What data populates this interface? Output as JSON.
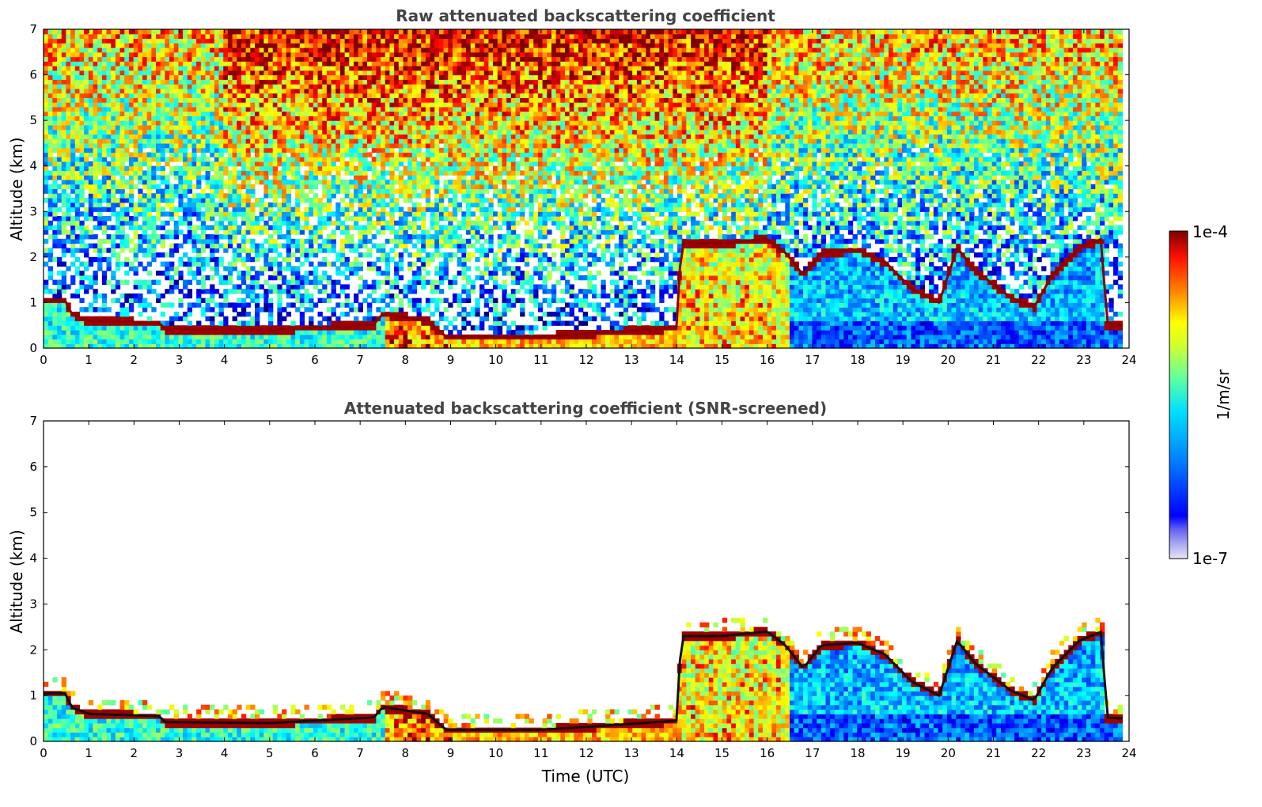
{
  "chart_data": [
    {
      "type": "heatmap",
      "title": "Raw attenuated backscattering coefficient",
      "xlabel": "",
      "ylabel": "Altitude (km)",
      "xlim": [
        0,
        24
      ],
      "ylim": [
        0,
        7
      ],
      "x_ticks": [
        "0",
        "1",
        "2",
        "3",
        "4",
        "5",
        "6",
        "7",
        "8",
        "9",
        "10",
        "11",
        "12",
        "13",
        "14",
        "15",
        "16",
        "17",
        "18",
        "19",
        "20",
        "21",
        "22",
        "23",
        "24"
      ],
      "y_ticks": [
        "0",
        "1",
        "2",
        "3",
        "4",
        "5",
        "6",
        "7"
      ],
      "colormap": "jet",
      "color_scale": "log",
      "features": {
        "boundary_layer_top_km": [
          [
            0,
            1.05
          ],
          [
            0.5,
            1.05
          ],
          [
            0.6,
            0.75
          ],
          [
            1.0,
            0.6
          ],
          [
            2.6,
            0.55
          ],
          [
            2.65,
            0.42
          ],
          [
            5,
            0.4
          ],
          [
            7.3,
            0.52
          ],
          [
            7.5,
            0.75
          ],
          [
            8.5,
            0.6
          ],
          [
            8.9,
            0.25
          ],
          [
            11,
            0.25
          ],
          [
            14,
            0.45
          ],
          [
            14.1,
            2.3
          ],
          [
            15,
            2.3
          ],
          [
            16,
            2.4
          ],
          [
            16.4,
            2.1
          ],
          [
            16.8,
            1.6
          ],
          [
            17.2,
            2.1
          ],
          [
            18,
            2.15
          ],
          [
            18.6,
            1.9
          ],
          [
            19.2,
            1.3
          ],
          [
            19.8,
            1.0
          ],
          [
            20.2,
            2.2
          ],
          [
            20.6,
            1.7
          ],
          [
            21.0,
            1.4
          ],
          [
            21.4,
            1.1
          ],
          [
            21.9,
            0.9
          ],
          [
            22.3,
            1.6
          ],
          [
            22.9,
            2.2
          ],
          [
            23.4,
            2.4
          ],
          [
            23.5,
            0.52
          ],
          [
            23.85,
            0.5
          ]
        ],
        "noisy_upper_region": true
      }
    },
    {
      "type": "heatmap",
      "title": "Attenuated backscattering coefficient (SNR-screened)",
      "xlabel": "Time (UTC)",
      "ylabel": "Altitude (km)",
      "xlim": [
        0,
        24
      ],
      "ylim": [
        0,
        7
      ],
      "x_ticks": [
        "0",
        "1",
        "2",
        "3",
        "4",
        "5",
        "6",
        "7",
        "8",
        "9",
        "10",
        "11",
        "12",
        "13",
        "14",
        "15",
        "16",
        "17",
        "18",
        "19",
        "20",
        "21",
        "22",
        "23",
        "24"
      ],
      "y_ticks": [
        "0",
        "1",
        "2",
        "3",
        "4",
        "5",
        "6",
        "7"
      ],
      "colormap": "jet",
      "color_scale": "log",
      "features": {
        "boundary_layer_top_km": [
          [
            0,
            1.05
          ],
          [
            0.5,
            1.05
          ],
          [
            0.6,
            0.75
          ],
          [
            1.0,
            0.6
          ],
          [
            2.6,
            0.55
          ],
          [
            2.65,
            0.42
          ],
          [
            5,
            0.4
          ],
          [
            7.3,
            0.52
          ],
          [
            7.5,
            0.75
          ],
          [
            8.5,
            0.6
          ],
          [
            8.9,
            0.25
          ],
          [
            11,
            0.25
          ],
          [
            14,
            0.45
          ],
          [
            14.1,
            2.3
          ],
          [
            15,
            2.3
          ],
          [
            16,
            2.4
          ],
          [
            16.4,
            2.1
          ],
          [
            16.8,
            1.6
          ],
          [
            17.2,
            2.1
          ],
          [
            18,
            2.15
          ],
          [
            18.6,
            1.9
          ],
          [
            19.2,
            1.3
          ],
          [
            19.8,
            1.0
          ],
          [
            20.2,
            2.2
          ],
          [
            20.6,
            1.7
          ],
          [
            21.0,
            1.4
          ],
          [
            21.4,
            1.1
          ],
          [
            21.9,
            0.9
          ],
          [
            22.3,
            1.6
          ],
          [
            22.9,
            2.2
          ],
          [
            23.4,
            2.4
          ],
          [
            23.5,
            0.52
          ],
          [
            23.85,
            0.5
          ]
        ],
        "noisy_upper_region": false
      }
    }
  ],
  "colorbar": {
    "label": "1/m/sr",
    "max_label": "1e-4",
    "min_label": "1e-7",
    "min_value": 1e-07,
    "max_value": 0.0001,
    "scale": "log",
    "colors": [
      "#000080",
      "#0000ff",
      "#0080ff",
      "#00ffff",
      "#80ff80",
      "#ffff00",
      "#ff8000",
      "#ff0000",
      "#800000"
    ]
  }
}
